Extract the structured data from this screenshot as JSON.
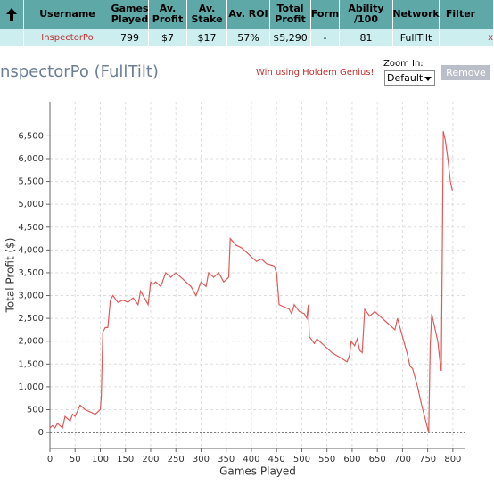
{
  "table": {
    "headers": [
      "Username",
      "Games Played",
      "Av. Profit",
      "Av. Stake",
      "Av. ROI",
      "Total Profit",
      "Form",
      "Ability /100",
      "Network",
      "Filter"
    ],
    "row": [
      "InspectorPo",
      "799",
      "$7",
      "$17",
      "57%",
      "$5,290",
      "-",
      "81",
      "FullTilt"
    ],
    "remove_icon": "x"
  },
  "heading": "nspectorPo (FullTilt)",
  "promo": "Win using Holdem Genius!",
  "zoom": {
    "label": "Zoom In:",
    "option": "Default",
    "button": "Remove"
  },
  "chart_data": {
    "type": "line",
    "xlabel": "Games Played",
    "ylabel": "Total Profit ($)",
    "color": "#e05a5a",
    "grid": true,
    "xlim": [
      0,
      825
    ],
    "ylim": [
      -350,
      7250
    ],
    "xticks": [
      0,
      50,
      100,
      150,
      200,
      250,
      300,
      350,
      400,
      450,
      500,
      550,
      600,
      650,
      700,
      750,
      800
    ],
    "yticks": [
      0,
      500,
      {
        "value": 1000,
        "label": "1,000"
      },
      {
        "value": 1500,
        "label": "1,500"
      },
      {
        "value": 2000,
        "label": "2,000"
      },
      {
        "value": 2500,
        "label": "2,500"
      },
      {
        "value": 3000,
        "label": "3,000"
      },
      {
        "value": 3500,
        "label": "3,500"
      },
      {
        "value": 4000,
        "label": "4,000"
      },
      {
        "value": 4500,
        "label": "4,500"
      },
      {
        "value": 5000,
        "label": "5,000"
      },
      {
        "value": 5500,
        "label": "5,500"
      },
      {
        "value": 6000,
        "label": "6,000"
      },
      {
        "value": 6500,
        "label": "6,500"
      }
    ],
    "x": [
      0,
      5,
      10,
      15,
      20,
      25,
      30,
      35,
      40,
      45,
      50,
      60,
      70,
      80,
      90,
      100,
      102,
      105,
      110,
      115,
      120,
      125,
      135,
      145,
      155,
      165,
      175,
      180,
      190,
      195,
      200,
      205,
      210,
      220,
      230,
      240,
      250,
      260,
      270,
      280,
      285,
      290,
      300,
      310,
      315,
      325,
      335,
      345,
      355,
      358,
      370,
      380,
      395,
      410,
      420,
      430,
      445,
      450,
      455,
      465,
      475,
      480,
      485,
      495,
      505,
      510,
      513,
      515,
      525,
      530,
      545,
      560,
      575,
      590,
      595,
      598,
      605,
      610,
      615,
      620,
      625,
      635,
      645,
      660,
      670,
      685,
      690,
      695,
      700,
      710,
      715,
      720,
      730,
      738,
      745,
      752,
      755,
      758,
      762,
      770,
      775,
      777,
      779,
      781,
      785,
      790,
      795,
      799
    ],
    "values": [
      100,
      150,
      100,
      200,
      150,
      100,
      350,
      300,
      250,
      400,
      350,
      600,
      500,
      450,
      400,
      500,
      800,
      2200,
      2300,
      2300,
      2900,
      3000,
      2850,
      2900,
      2850,
      2950,
      2800,
      3100,
      2900,
      2800,
      3300,
      3250,
      3300,
      3200,
      3500,
      3400,
      3500,
      3400,
      3300,
      3200,
      3100,
      3000,
      3300,
      3200,
      3500,
      3400,
      3500,
      3300,
      3400,
      4250,
      4100,
      4050,
      3900,
      3750,
      3800,
      3700,
      3650,
      3500,
      2800,
      2750,
      2700,
      2600,
      2800,
      2650,
      2600,
      2500,
      2800,
      2100,
      1950,
      2050,
      1900,
      1750,
      1650,
      1550,
      1700,
      2000,
      1900,
      2050,
      1800,
      1750,
      2700,
      2550,
      2650,
      2500,
      2400,
      2250,
      2500,
      2300,
      2100,
      1700,
      1450,
      1400,
      1000,
      600,
      300,
      0,
      1900,
      2600,
      2400,
      2000,
      1500,
      1350,
      4000,
      6600,
      6400,
      6000,
      5500,
      5300
    ]
  }
}
